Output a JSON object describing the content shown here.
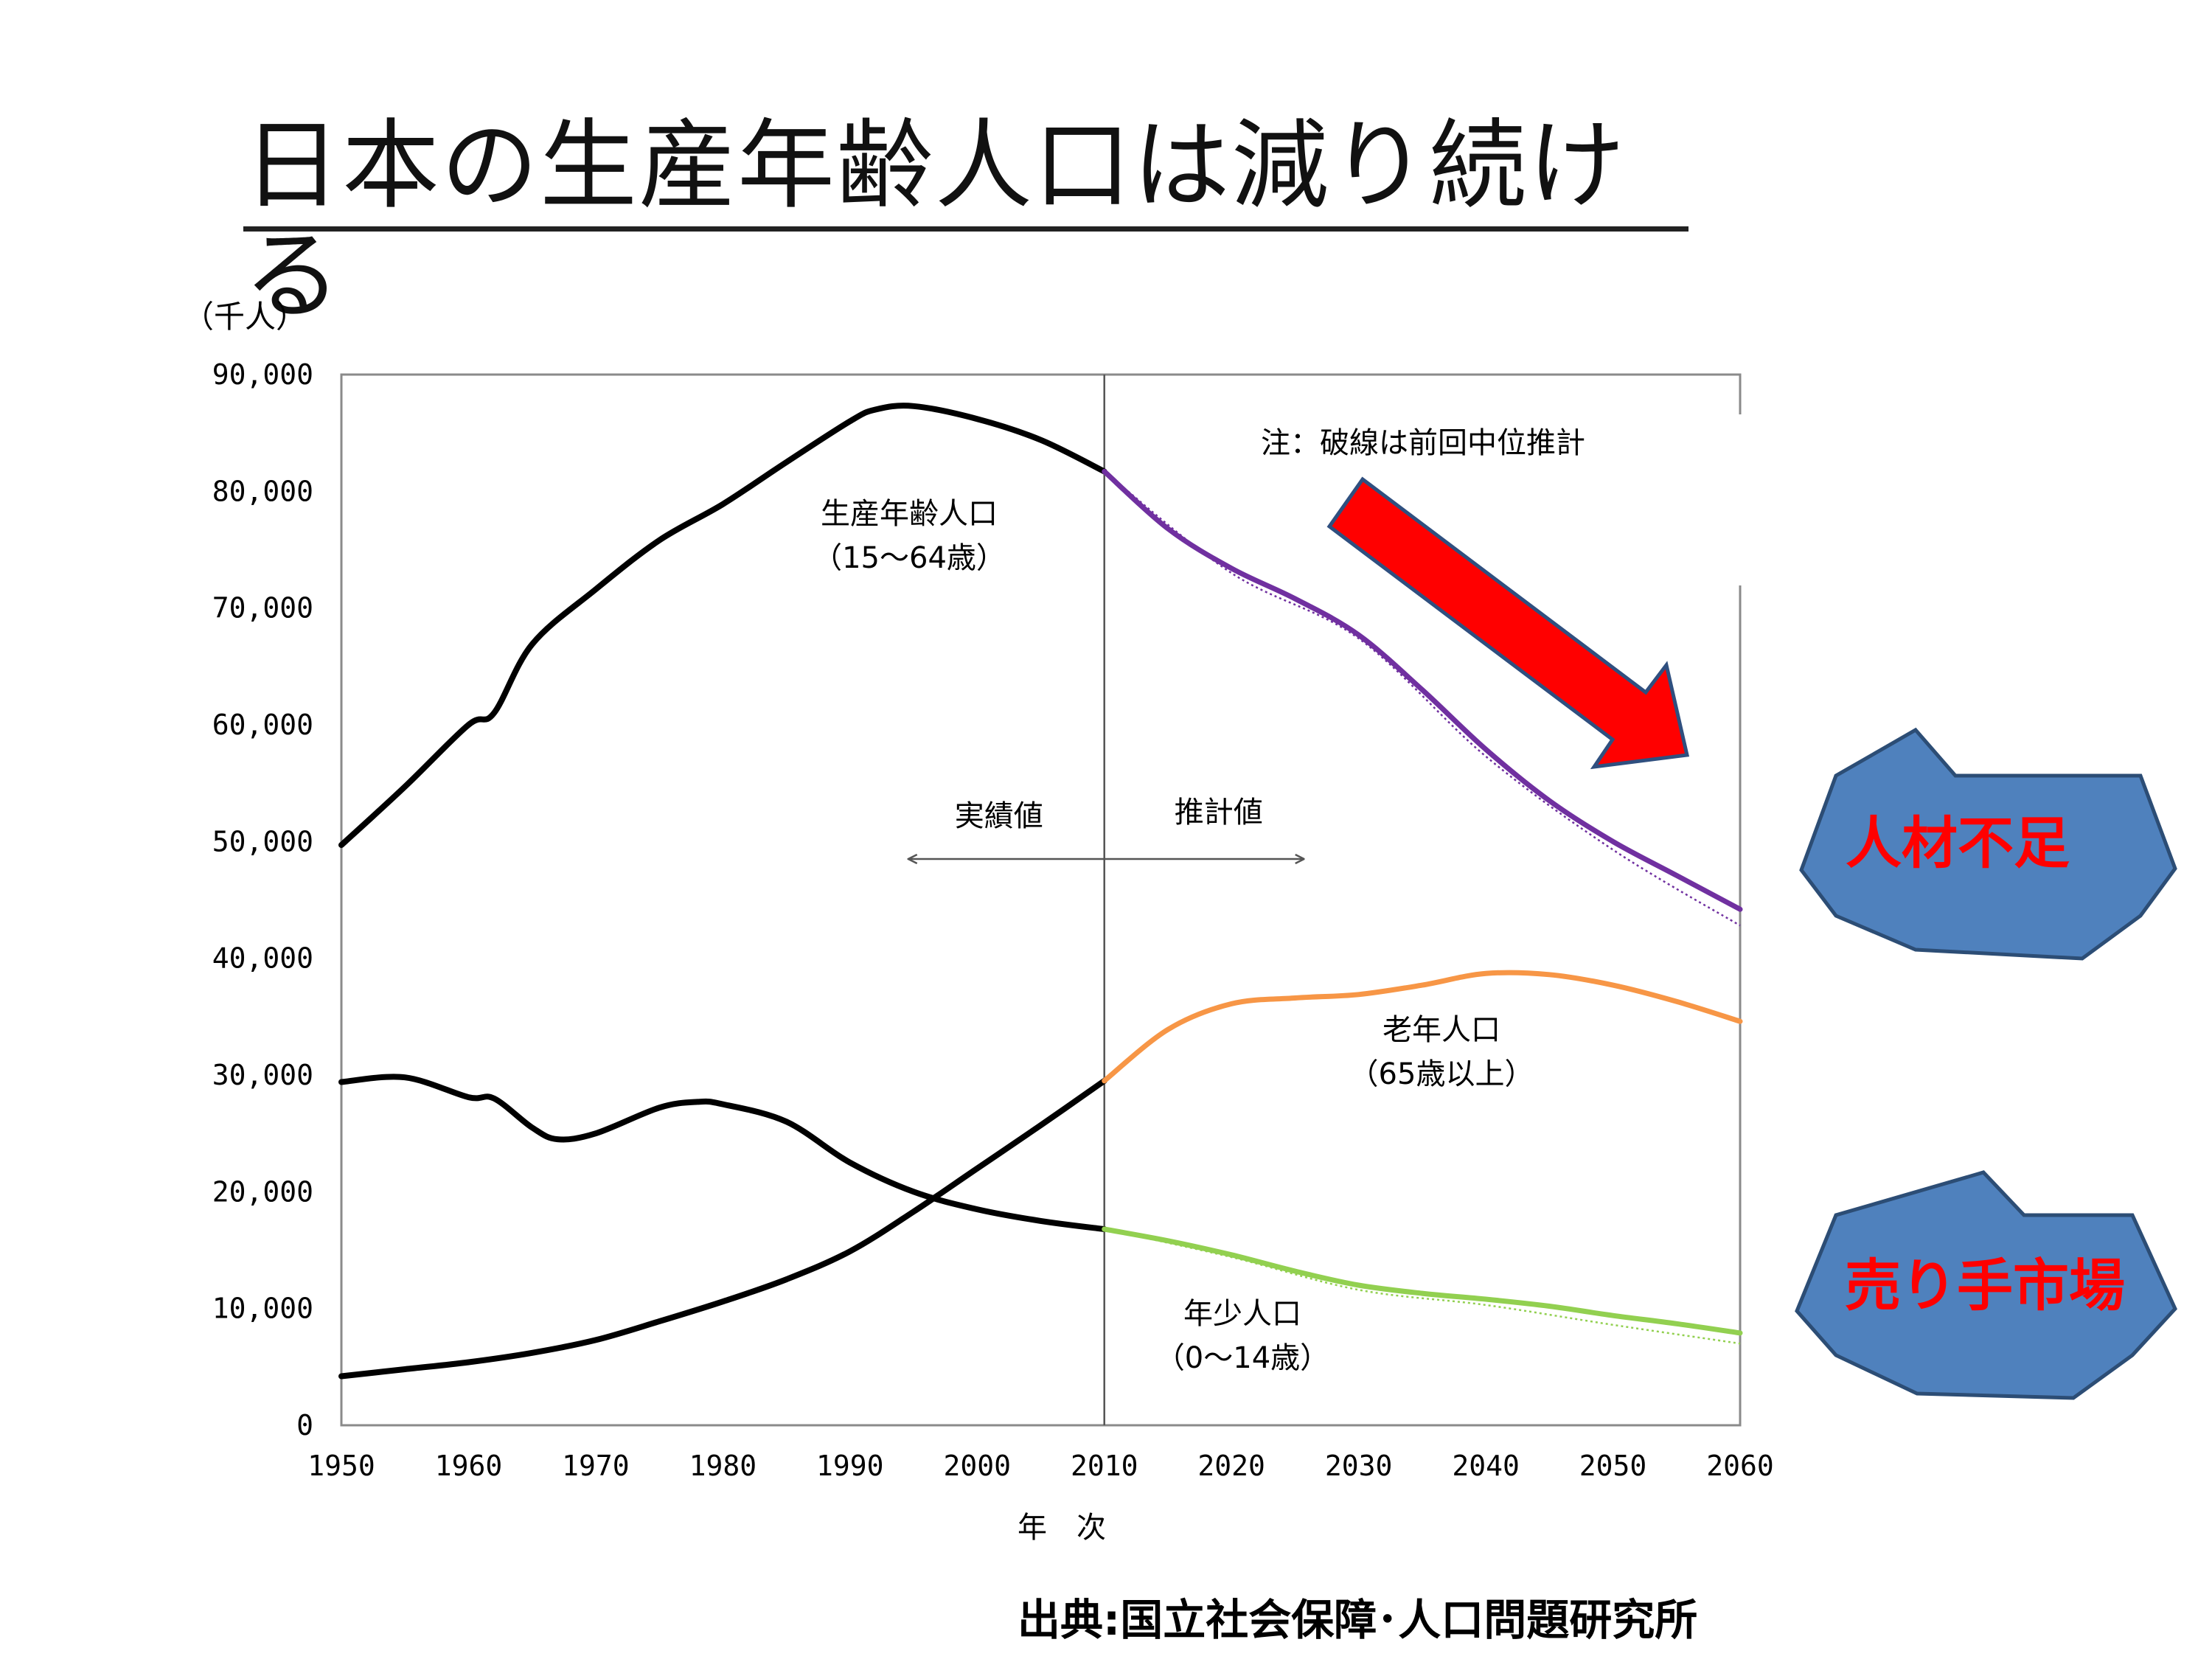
{
  "page": {
    "title": "日本の生産年齢人口は減り続ける",
    "source": "出典:国立社会保障･人口問題研究所"
  },
  "chart_data": {
    "type": "line",
    "ylabel": "（千人）",
    "xlabel": "年　次",
    "xlim": [
      1950,
      2060
    ],
    "ylim": [
      0,
      90000
    ],
    "x_ticks": [
      1950,
      1960,
      1970,
      1980,
      1990,
      2000,
      2010,
      2020,
      2030,
      2040,
      2050,
      2060
    ],
    "y_ticks": [
      0,
      10000,
      20000,
      30000,
      40000,
      50000,
      60000,
      70000,
      80000,
      90000
    ],
    "y_tick_labels": [
      "0",
      "10,000",
      "20,000",
      "30,000",
      "40,000",
      "50,000",
      "60,000",
      "70,000",
      "80,000",
      "90,000"
    ],
    "grid": false,
    "divider_year": 2010,
    "labels": {
      "actual": "実績値",
      "projected": "推計値",
      "note": "注：破線は前回中位推計",
      "working_age": [
        "生産年齢人口",
        "（15～64歳）"
      ],
      "elderly": [
        "老年人口",
        "（65歳以上）"
      ],
      "youth": [
        "年少人口",
        "（0～14歳）"
      ]
    },
    "series": [
      {
        "key": "working_age",
        "color_actual": "#000000",
        "color_projected": "#7030a0",
        "actual": [
          [
            1950,
            49700
          ],
          [
            1955,
            54700
          ],
          [
            1960,
            60000
          ],
          [
            1962,
            61000
          ],
          [
            1965,
            66900
          ],
          [
            1970,
            71600
          ],
          [
            1975,
            75800
          ],
          [
            1980,
            78900
          ],
          [
            1985,
            82500
          ],
          [
            1990,
            86000
          ],
          [
            1992,
            87000
          ],
          [
            1995,
            87300
          ],
          [
            2000,
            86200
          ],
          [
            2005,
            84400
          ],
          [
            2010,
            81700
          ]
        ],
        "projected": [
          [
            2010,
            81700
          ],
          [
            2015,
            76800
          ],
          [
            2020,
            73400
          ],
          [
            2025,
            70800
          ],
          [
            2030,
            67700
          ],
          [
            2035,
            63000
          ],
          [
            2040,
            57900
          ],
          [
            2045,
            53500
          ],
          [
            2050,
            50000
          ],
          [
            2055,
            47100
          ],
          [
            2060,
            44200
          ]
        ],
        "previous_projection": [
          [
            2010,
            81700
          ],
          [
            2020,
            73000
          ],
          [
            2030,
            67400
          ],
          [
            2040,
            57300
          ],
          [
            2050,
            49300
          ],
          [
            2060,
            42800
          ]
        ]
      },
      {
        "key": "elderly",
        "color_actual": "#000000",
        "color_projected": "#f79646",
        "actual": [
          [
            1950,
            4200
          ],
          [
            1955,
            4800
          ],
          [
            1960,
            5400
          ],
          [
            1965,
            6200
          ],
          [
            1970,
            7300
          ],
          [
            1975,
            8900
          ],
          [
            1980,
            10600
          ],
          [
            1985,
            12500
          ],
          [
            1990,
            14900
          ],
          [
            1995,
            18300
          ],
          [
            2000,
            22000
          ],
          [
            2005,
            25700
          ],
          [
            2010,
            29500
          ]
        ],
        "projected": [
          [
            2010,
            29500
          ],
          [
            2015,
            33900
          ],
          [
            2020,
            36100
          ],
          [
            2025,
            36600
          ],
          [
            2030,
            36900
          ],
          [
            2035,
            37700
          ],
          [
            2040,
            38700
          ],
          [
            2045,
            38600
          ],
          [
            2050,
            37700
          ],
          [
            2055,
            36300
          ],
          [
            2060,
            34600
          ]
        ]
      },
      {
        "key": "youth",
        "color_actual": "#000000",
        "color_projected": "#92d050",
        "actual": [
          [
            1950,
            29400
          ],
          [
            1955,
            29800
          ],
          [
            1960,
            28100
          ],
          [
            1962,
            28000
          ],
          [
            1965,
            25500
          ],
          [
            1967,
            24500
          ],
          [
            1970,
            25000
          ],
          [
            1975,
            27200
          ],
          [
            1978,
            27700
          ],
          [
            1980,
            27500
          ],
          [
            1985,
            26000
          ],
          [
            1990,
            22500
          ],
          [
            1995,
            20000
          ],
          [
            2000,
            18500
          ],
          [
            2005,
            17500
          ],
          [
            2010,
            16800
          ]
        ],
        "projected": [
          [
            2010,
            16800
          ],
          [
            2015,
            15800
          ],
          [
            2020,
            14600
          ],
          [
            2025,
            13200
          ],
          [
            2030,
            12000
          ],
          [
            2035,
            11300
          ],
          [
            2040,
            10800
          ],
          [
            2045,
            10200
          ],
          [
            2050,
            9400
          ],
          [
            2055,
            8700
          ],
          [
            2060,
            7900
          ]
        ],
        "previous_projection": [
          [
            2010,
            16800
          ],
          [
            2020,
            14400
          ],
          [
            2030,
            11600
          ],
          [
            2040,
            10300
          ],
          [
            2050,
            8600
          ],
          [
            2060,
            7000
          ]
        ]
      }
    ],
    "callouts": [
      "人材不足",
      "売り手市場"
    ]
  },
  "colors": {
    "arrow": "#ff0000",
    "arrow_border": "#2f4f7f",
    "star_fill": "#4f81bd",
    "star_border": "#2c4d75",
    "star_text": "#ff0000",
    "axis": "#888888"
  }
}
